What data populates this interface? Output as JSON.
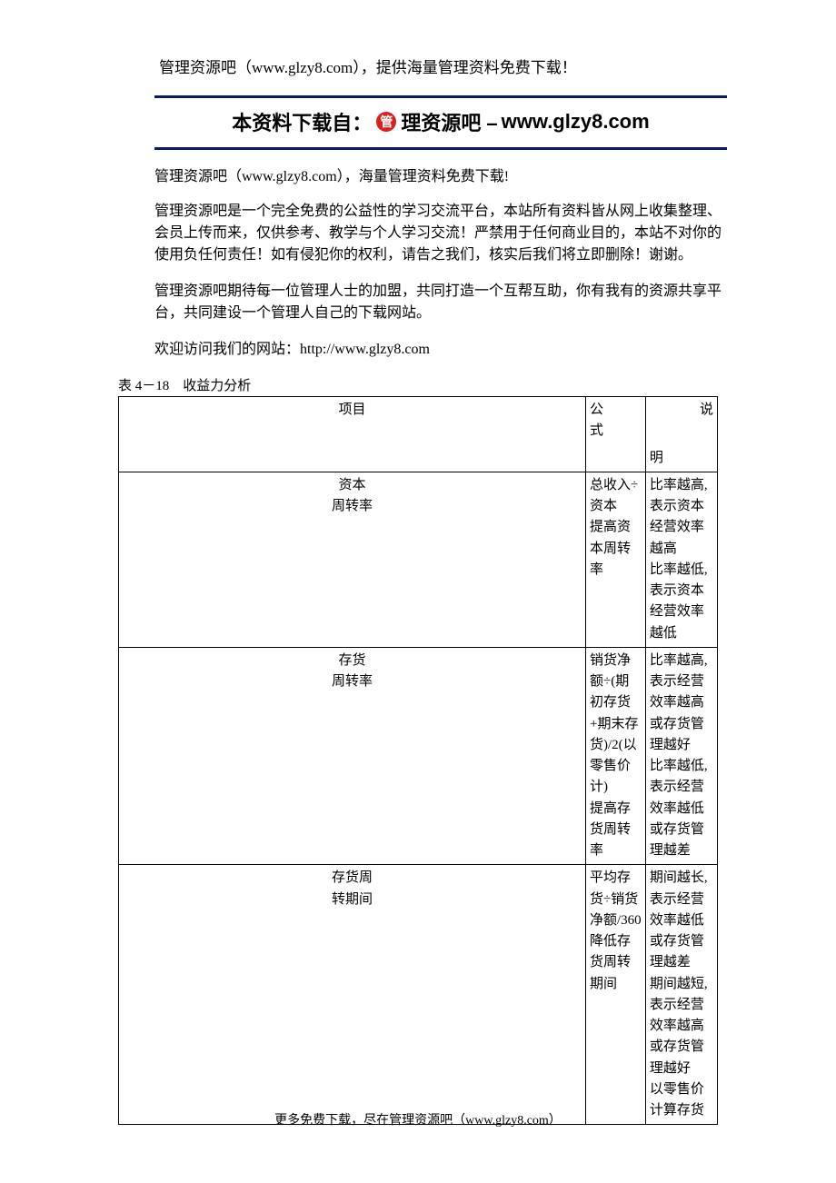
{
  "header": {
    "top_line": "管理资源吧（www.glzy8.com），提供海量管理资料免费下载！"
  },
  "banner": {
    "prefix": "本资料下载自：",
    "red_char": "管",
    "mid": "理资源吧 – ",
    "url": "www.glzy8.com"
  },
  "intro": {
    "p1": "管理资源吧（www.glzy8.com），海量管理资料免费下载!",
    "p2": "管理资源吧是一个完全免费的公益性的学习交流平台，本站所有资料皆从网上收集整理、会员上传而来，仅供参考、教学与个人学习交流！严禁用于任何商业目的，本站不对你的使用负任何责任！如有侵犯你的权利，请告之我们，核实后我们将立即删除！谢谢。",
    "p3": "管理资源吧期待每一位管理人士的加盟，共同打造一个互帮互助，你有我有的资源共享平台，共同建设一个管理人自己的下载网站。",
    "p4": "欢迎访问我们的网站：http://www.glzy8.com"
  },
  "caption": "表 4－18　收益力分析",
  "table": {
    "columns": {
      "c1": "项目",
      "c2": "公　　式",
      "c3": "说"
    },
    "desc_sub": "明",
    "rows": [
      {
        "item": "资本\n周转率",
        "formula": "总收入÷资本\n提高资本周转率",
        "desc": "比率越高,表示资本经营效率越高\n比率越低,表示资本经营效率越低"
      },
      {
        "item": "存货\n周转率",
        "formula": "销货净额÷(期初存货+期末存货)/2(以零售价计)\n提高存货周转率",
        "desc": "比率越高,表示经营效率越高或存货管理越好\n比率越低,表示经营效率越低或存货管理越差"
      },
      {
        "item": "存货周\n转期间",
        "formula": "平均存货÷销货净额/360\n降低存货周转期间",
        "desc": "期间越长,表示经营效率越低或存货管理越差\n期间越短,表示经营效率越高或存货管理越好\n以零售价计算存货"
      }
    ]
  },
  "footer": "更多免费下载，尽在管理资源吧（www.glzy8.com）",
  "colors": {
    "border_blue": "#0a1a6a",
    "red": "#d82020",
    "text": "#000000",
    "bg": "#ffffff",
    "table_border": "#000000"
  },
  "typography": {
    "body_family": "SimSun",
    "banner_family": "SimHei",
    "body_size_pt": 12,
    "banner_size_pt": 16,
    "header_size_pt": 13
  }
}
